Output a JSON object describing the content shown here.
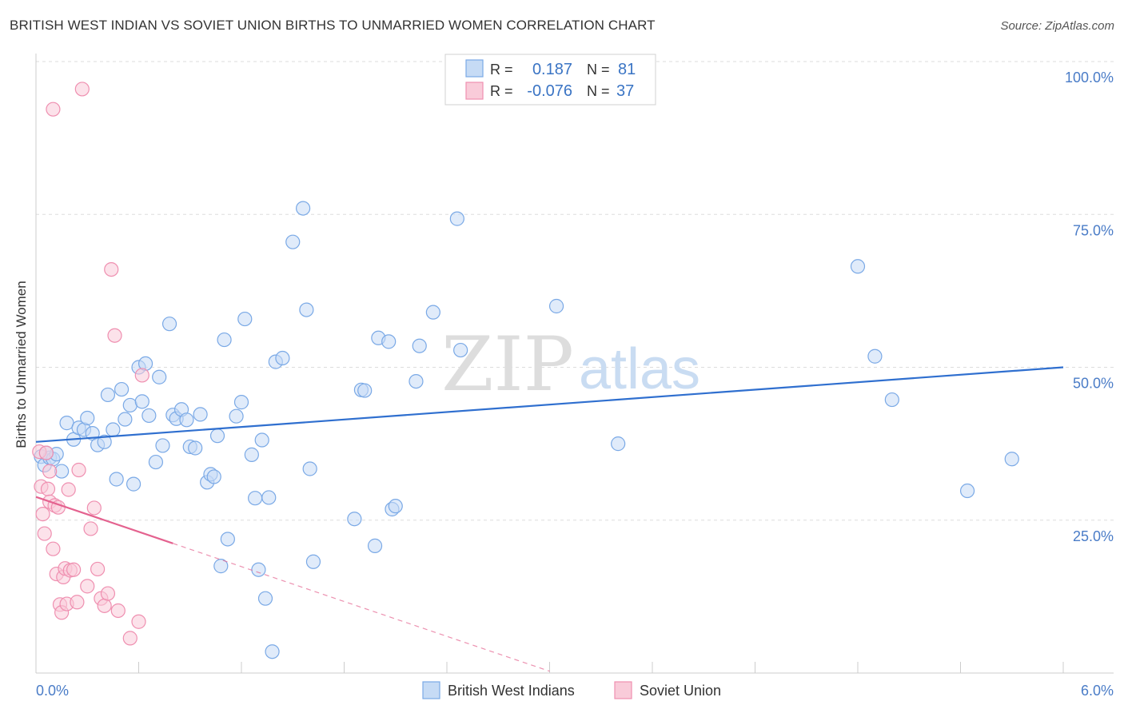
{
  "title": "BRITISH WEST INDIAN VS SOVIET UNION BIRTHS TO UNMARRIED WOMEN CORRELATION CHART",
  "source": "Source: ZipAtlas.com",
  "watermark": {
    "zip": "ZIP",
    "atlas": "atlas"
  },
  "colors": {
    "blue": "#7aa9e6",
    "blue_fill": "#c6dbf5",
    "blue_line": "#2f6fcf",
    "pink": "#ef8fb0",
    "pink_fill": "#f9cbd9",
    "pink_line": "#e4628f",
    "axis_text": "#4a7cc7",
    "grid": "#dddddd"
  },
  "legend_top": [
    {
      "r_label": "R =",
      "r_value": "0.187",
      "n_label": "N =",
      "n_value": "81"
    },
    {
      "r_label": "R =",
      "r_value": "-0.076",
      "n_label": "N =",
      "n_value": "37"
    }
  ],
  "legend_bottom": [
    "British West Indians",
    "Soviet Union"
  ],
  "chart_data": {
    "type": "scatter",
    "title": "BRITISH WEST INDIAN VS SOVIET UNION BIRTHS TO UNMARRIED WOMEN CORRELATION CHART",
    "xlabel": "",
    "ylabel": "Births to Unmarried Women",
    "xlim": [
      0.0,
      6.0
    ],
    "ylim": [
      0.0,
      100.0
    ],
    "x_tick_labels": [
      "0.0%",
      "6.0%"
    ],
    "y_ticks": [
      25,
      50,
      75,
      100
    ],
    "y_tick_labels": [
      "25.0%",
      "50.0%",
      "75.0%",
      "100.0%"
    ],
    "grid": true,
    "series": [
      {
        "name": "British West Indians",
        "r": 0.187,
        "n": 81,
        "trend": {
          "x": [
            0.0,
            6.0
          ],
          "y": [
            37.8,
            50.0
          ],
          "dashed_to": 6.0
        },
        "points": [
          [
            0.03,
            35.4
          ],
          [
            0.05,
            34.0
          ],
          [
            0.08,
            35.2
          ],
          [
            0.1,
            35.0
          ],
          [
            0.12,
            35.8
          ],
          [
            0.15,
            33.0
          ],
          [
            0.18,
            40.9
          ],
          [
            0.22,
            38.2
          ],
          [
            0.25,
            40.1
          ],
          [
            0.28,
            39.8
          ],
          [
            0.3,
            41.7
          ],
          [
            0.33,
            39.2
          ],
          [
            0.36,
            37.3
          ],
          [
            0.4,
            37.8
          ],
          [
            0.42,
            45.5
          ],
          [
            0.45,
            39.8
          ],
          [
            0.47,
            31.7
          ],
          [
            0.5,
            46.4
          ],
          [
            0.52,
            41.5
          ],
          [
            0.55,
            43.8
          ],
          [
            0.57,
            30.9
          ],
          [
            0.6,
            50.0
          ],
          [
            0.62,
            44.4
          ],
          [
            0.64,
            50.6
          ],
          [
            0.66,
            42.1
          ],
          [
            0.7,
            34.5
          ],
          [
            0.72,
            48.4
          ],
          [
            0.74,
            37.2
          ],
          [
            0.78,
            57.1
          ],
          [
            0.8,
            42.2
          ],
          [
            0.82,
            41.6
          ],
          [
            0.85,
            43.1
          ],
          [
            0.88,
            41.4
          ],
          [
            0.9,
            37.0
          ],
          [
            0.93,
            36.8
          ],
          [
            0.96,
            42.3
          ],
          [
            1.0,
            31.2
          ],
          [
            1.02,
            32.5
          ],
          [
            1.04,
            32.1
          ],
          [
            1.06,
            38.8
          ],
          [
            1.08,
            17.5
          ],
          [
            1.1,
            54.5
          ],
          [
            1.12,
            21.9
          ],
          [
            1.17,
            42.0
          ],
          [
            1.2,
            44.3
          ],
          [
            1.22,
            57.9
          ],
          [
            1.26,
            35.7
          ],
          [
            1.28,
            28.6
          ],
          [
            1.3,
            16.9
          ],
          [
            1.32,
            38.1
          ],
          [
            1.34,
            12.2
          ],
          [
            1.36,
            28.7
          ],
          [
            1.38,
            3.5
          ],
          [
            1.4,
            50.9
          ],
          [
            1.44,
            51.5
          ],
          [
            1.5,
            70.5
          ],
          [
            1.56,
            76.0
          ],
          [
            1.58,
            59.4
          ],
          [
            1.6,
            33.4
          ],
          [
            1.62,
            18.2
          ],
          [
            1.86,
            25.2
          ],
          [
            1.9,
            46.3
          ],
          [
            1.92,
            46.2
          ],
          [
            1.98,
            20.8
          ],
          [
            2.0,
            54.8
          ],
          [
            2.06,
            54.2
          ],
          [
            2.08,
            26.8
          ],
          [
            2.1,
            27.3
          ],
          [
            2.22,
            47.7
          ],
          [
            2.24,
            53.5
          ],
          [
            2.32,
            59.0
          ],
          [
            2.46,
            74.3
          ],
          [
            2.48,
            52.8
          ],
          [
            3.04,
            60.0
          ],
          [
            3.4,
            37.5
          ],
          [
            4.8,
            66.5
          ],
          [
            4.9,
            51.8
          ],
          [
            5.0,
            44.7
          ],
          [
            5.44,
            29.8
          ],
          [
            5.7,
            35.0
          ],
          [
            0.06,
            36.0
          ]
        ]
      },
      {
        "name": "Soviet Union",
        "r": -0.076,
        "n": 37,
        "trend": {
          "x": [
            0.0,
            0.8
          ],
          "y": [
            28.8,
            21.2
          ],
          "dashed_to": 3.0
        },
        "points": [
          [
            0.02,
            36.2
          ],
          [
            0.03,
            30.5
          ],
          [
            0.04,
            26.0
          ],
          [
            0.05,
            22.8
          ],
          [
            0.06,
            36.0
          ],
          [
            0.07,
            30.1
          ],
          [
            0.08,
            28.0
          ],
          [
            0.1,
            20.3
          ],
          [
            0.11,
            27.4
          ],
          [
            0.12,
            16.2
          ],
          [
            0.13,
            27.1
          ],
          [
            0.14,
            11.2
          ],
          [
            0.15,
            9.9
          ],
          [
            0.16,
            15.7
          ],
          [
            0.17,
            17.1
          ],
          [
            0.18,
            11.3
          ],
          [
            0.19,
            30.0
          ],
          [
            0.2,
            16.8
          ],
          [
            0.22,
            16.9
          ],
          [
            0.24,
            11.6
          ],
          [
            0.25,
            33.2
          ],
          [
            0.27,
            95.5
          ],
          [
            0.3,
            14.2
          ],
          [
            0.32,
            23.6
          ],
          [
            0.34,
            27.0
          ],
          [
            0.36,
            17.0
          ],
          [
            0.38,
            12.2
          ],
          [
            0.4,
            11.0
          ],
          [
            0.42,
            13.0
          ],
          [
            0.44,
            66.0
          ],
          [
            0.46,
            55.2
          ],
          [
            0.48,
            10.2
          ],
          [
            0.55,
            5.7
          ],
          [
            0.6,
            8.4
          ],
          [
            0.62,
            48.7
          ],
          [
            0.1,
            92.2
          ],
          [
            0.08,
            33.0
          ]
        ]
      }
    ]
  }
}
